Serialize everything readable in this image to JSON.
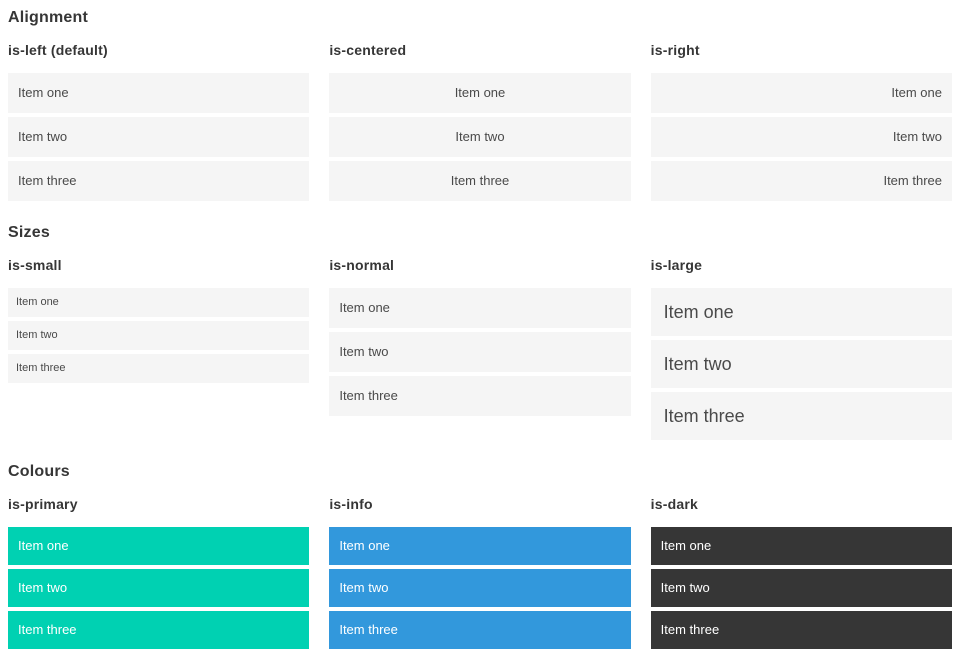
{
  "colors": {
    "page_background": "#ffffff",
    "item_background": "#f5f5f5",
    "item_text": "#4a4a4a",
    "heading_text": "#363636",
    "primary": "#00d1b2",
    "info": "#3298dc",
    "dark": "#363636",
    "colour_item_text": "#ffffff"
  },
  "sections": [
    {
      "title": "Alignment",
      "columns": [
        {
          "heading": "is-left (default)",
          "items": [
            "Item one",
            "Item two",
            "Item three"
          ]
        },
        {
          "heading": "is-centered",
          "items": [
            "Item one",
            "Item two",
            "Item three"
          ]
        },
        {
          "heading": "is-right",
          "items": [
            "Item one",
            "Item two",
            "Item three"
          ]
        }
      ]
    },
    {
      "title": "Sizes",
      "columns": [
        {
          "heading": "is-small",
          "items": [
            "Item one",
            "Item two",
            "Item three"
          ]
        },
        {
          "heading": "is-normal",
          "items": [
            "Item one",
            "Item two",
            "Item three"
          ]
        },
        {
          "heading": "is-large",
          "items": [
            "Item one",
            "Item two",
            "Item three"
          ]
        }
      ]
    },
    {
      "title": "Colours",
      "columns": [
        {
          "heading": "is-primary",
          "items": [
            "Item one",
            "Item two",
            "Item three"
          ]
        },
        {
          "heading": "is-info",
          "items": [
            "Item one",
            "Item two",
            "Item three"
          ]
        },
        {
          "heading": "is-dark",
          "items": [
            "Item one",
            "Item two",
            "Item three"
          ]
        }
      ]
    }
  ]
}
